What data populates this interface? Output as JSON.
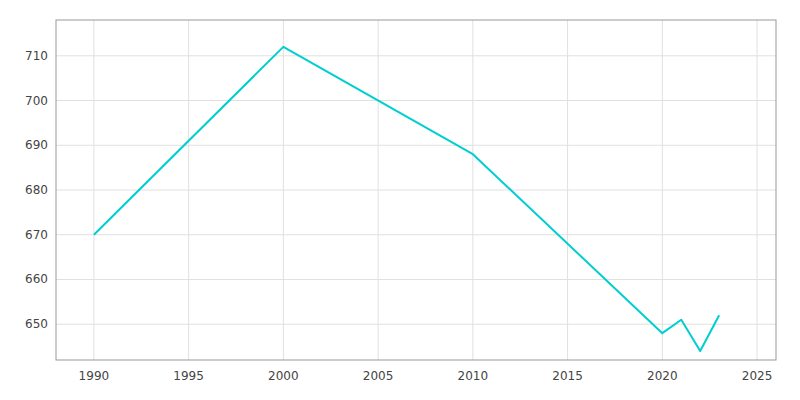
{
  "chart_data": {
    "type": "line",
    "x": [
      1990,
      2000,
      2010,
      2020,
      2021,
      2022,
      2023
    ],
    "values": [
      670,
      712,
      688,
      648,
      651,
      644,
      652
    ],
    "color": "#00CED1",
    "xlim": [
      1988,
      2026
    ],
    "ylim": [
      642,
      718
    ],
    "xticks": [
      1990,
      1995,
      2000,
      2005,
      2010,
      2015,
      2020,
      2025
    ],
    "yticks": [
      650,
      660,
      670,
      680,
      690,
      700,
      710
    ],
    "grid": true
  }
}
